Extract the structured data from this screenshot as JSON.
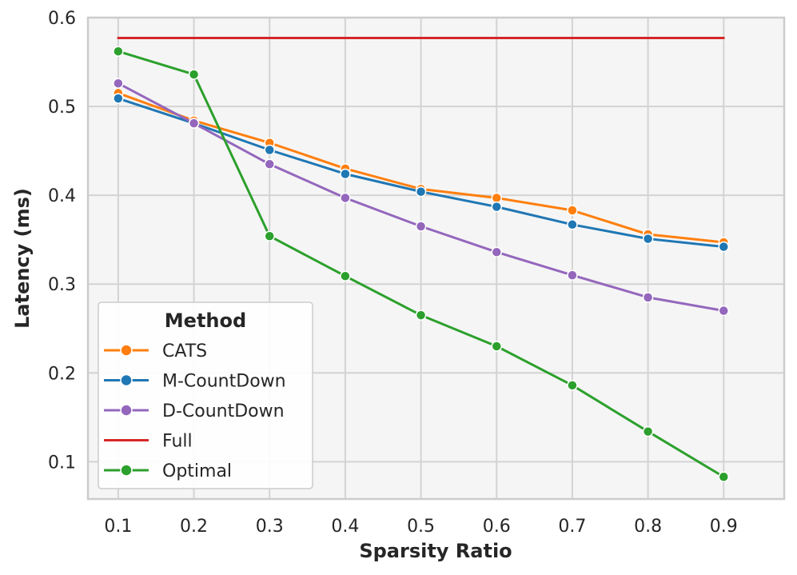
{
  "chart_data": {
    "type": "line",
    "title": "",
    "xlabel": "Sparsity Ratio",
    "ylabel": "Latency (ms)",
    "x": [
      0.1,
      0.2,
      0.3,
      0.4,
      0.5,
      0.6,
      0.7,
      0.8,
      0.9
    ],
    "x_tick_labels": [
      "0.1",
      "0.2",
      "0.3",
      "0.4",
      "0.5",
      "0.6",
      "0.7",
      "0.8",
      "0.9"
    ],
    "xlim": [
      0.06,
      0.98
    ],
    "y_ticks": [
      0.1,
      0.2,
      0.3,
      0.4,
      0.5,
      0.6
    ],
    "y_tick_labels": [
      "0.1",
      "0.2",
      "0.3",
      "0.4",
      "0.5",
      "0.6"
    ],
    "ylim": [
      0.058,
      0.6
    ],
    "grid": true,
    "legend": {
      "title": "Method",
      "position": "lower-left"
    },
    "series": [
      {
        "name": "CATS",
        "color": "#ff7f0e",
        "marker": true,
        "values": [
          0.515,
          0.484,
          0.459,
          0.43,
          0.407,
          0.397,
          0.383,
          0.356,
          0.347
        ]
      },
      {
        "name": "M-CountDown",
        "color": "#1f77b4",
        "marker": true,
        "values": [
          0.509,
          0.481,
          0.451,
          0.424,
          0.404,
          0.387,
          0.367,
          0.351,
          0.342
        ]
      },
      {
        "name": "D-CountDown",
        "color": "#9467bd",
        "marker": true,
        "values": [
          0.526,
          0.481,
          0.435,
          0.397,
          0.365,
          0.336,
          0.31,
          0.285,
          0.27
        ]
      },
      {
        "name": "Full",
        "color": "#d62728",
        "marker": false,
        "values": [
          0.577,
          0.577,
          0.577,
          0.577,
          0.577,
          0.577,
          0.577,
          0.577,
          0.577
        ]
      },
      {
        "name": "Optimal",
        "color": "#2ca02c",
        "marker": true,
        "values": [
          0.562,
          0.536,
          0.354,
          0.309,
          0.265,
          0.23,
          0.186,
          0.134,
          0.083
        ]
      }
    ]
  }
}
